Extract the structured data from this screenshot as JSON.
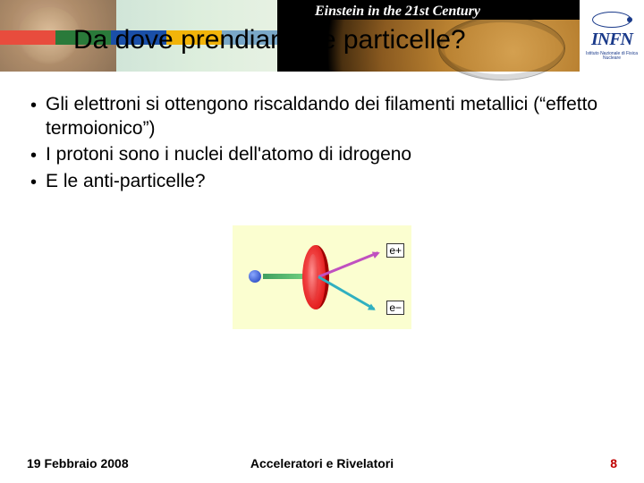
{
  "banner": {
    "tagline": "Einstein in the 21st Century",
    "stripe_colors": [
      "#e84c3d",
      "#2a7a3a",
      "#1a4fa8",
      "#f2b40a",
      "#7aa8c8"
    ],
    "infn": {
      "name": "INFN",
      "subtitle": "Istituto Nazionale di Fisica Nucleare"
    }
  },
  "title": "Da dove prendiamo le particelle?",
  "bullets": [
    "Gli elettroni si ottengono riscaldando dei filamenti  metallici (“effetto termoionico”)",
    "I protoni sono i nuclei dell'atomo di idrogeno",
    "E le anti-particelle?"
  ],
  "diagram": {
    "type": "infographic",
    "background_color": "#fbfed0",
    "incoming_particle_color": "#3a5acc",
    "beam_color": "#40a060",
    "target_color": "#e42020",
    "out_colors": [
      "#c050c0",
      "#30b0c0"
    ],
    "labels": {
      "positron": "e+",
      "electron": "e−"
    }
  },
  "footer": {
    "date": "19 Febbraio 2008",
    "center": "Acceleratori e Rivelatori",
    "page": "8",
    "page_color": "#c00000"
  }
}
